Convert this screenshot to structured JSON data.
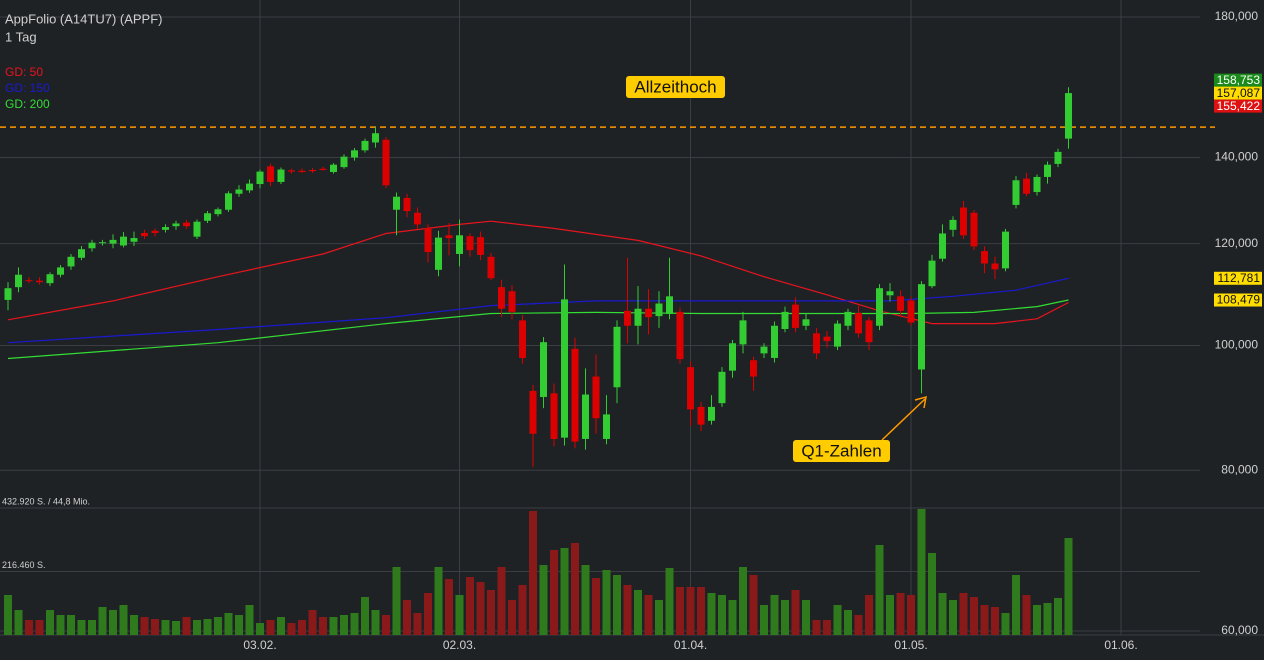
{
  "chart_data": {
    "type": "candlestick",
    "title": "AppFolio (A14TU7) (APPF)",
    "subtitle": "1 Tag",
    "log_scale": true,
    "grid": true,
    "up_color": "#33cc33",
    "down_color": "#dd0000",
    "ylim": [
      60000,
      180000
    ],
    "yticks": [
      {
        "value": 60000,
        "label": "60,000"
      },
      {
        "value": 80000,
        "label": "80,000"
      },
      {
        "value": 100000,
        "label": "100,000"
      },
      {
        "value": 120000,
        "label": "120,000"
      },
      {
        "value": 140000,
        "label": "140,000"
      },
      {
        "value": 180000,
        "label": "180,000"
      }
    ],
    "xlim": [
      -0.5,
      119.5
    ],
    "xticks": [
      {
        "value": 24,
        "label": "03.02."
      },
      {
        "value": 43,
        "label": "02.03."
      },
      {
        "value": 65,
        "label": "01.04."
      },
      {
        "value": 86,
        "label": "01.05."
      },
      {
        "value": 106,
        "label": "01.06."
      }
    ],
    "open": [
      108500,
      111000,
      112400,
      112300,
      111800,
      113500,
      115200,
      117000,
      119000,
      120100,
      120000,
      119600,
      120400,
      122300,
      122800,
      123000,
      123800,
      124600,
      121500,
      125000,
      126500,
      127500,
      131200,
      132000,
      133500,
      137800,
      134000,
      136800,
      136700,
      136900,
      137200,
      136400,
      137600,
      140000,
      141800,
      143800,
      144500,
      127500,
      130200,
      126800,
      123400,
      114500,
      121800,
      117800,
      121600,
      121400,
      117200,
      111000,
      110200,
      104600,
      92200,
      91200,
      91800,
      84800,
      99400,
      84600,
      94600,
      84600,
      92800,
      106400,
      103600,
      106800,
      105400,
      105800,
      106200,
      96200,
      89600,
      87400,
      90200,
      95600,
      100200,
      97400,
      98600,
      97800,
      103000,
      107600,
      103600,
      102200,
      101600,
      99800,
      103600,
      106000,
      104600,
      103600,
      109400,
      109200,
      108400,
      95800,
      111200,
      116800,
      123000,
      128000,
      126800,
      118400,
      115800,
      114800,
      128600,
      134800,
      131600,
      135200,
      138400,
      144800
    ],
    "high": [
      112000,
      115000,
      113000,
      113000,
      114000,
      115500,
      117800,
      119500,
      120800,
      120800,
      122000,
      122500,
      122600,
      123000,
      123300,
      124200,
      125000,
      125200,
      125300,
      127200,
      128000,
      131800,
      133200,
      134600,
      137000,
      138500,
      137500,
      137200,
      137300,
      137400,
      137700,
      138600,
      140800,
      142400,
      144800,
      147800,
      145200,
      131500,
      131200,
      128000,
      124200,
      122800,
      124500,
      125300,
      122200,
      122600,
      118000,
      112500,
      111400,
      105600,
      93200,
      101500,
      93400,
      115600,
      101400,
      96000,
      98400,
      91500,
      104600,
      117000,
      111200,
      110600,
      110200,
      117000,
      107000,
      97200,
      90400,
      91500,
      96200,
      101000,
      106200,
      98000,
      100400,
      104400,
      107200,
      109000,
      106000,
      103200,
      102600,
      104600,
      106800,
      107400,
      105200,
      111600,
      111800,
      110400,
      109200,
      112200,
      117600,
      124200,
      126000,
      129500,
      127400,
      119400,
      117200,
      123200,
      135400,
      136200,
      135800,
      139000,
      142200,
      158753
    ],
    "low": [
      106500,
      110000,
      111800,
      111500,
      111200,
      113000,
      114500,
      116500,
      118300,
      119600,
      119000,
      119200,
      119500,
      121000,
      121500,
      122400,
      123000,
      123200,
      121000,
      124500,
      126000,
      127000,
      130500,
      131400,
      132500,
      133000,
      133500,
      136000,
      136200,
      136200,
      136700,
      136000,
      137200,
      139200,
      141200,
      142500,
      132500,
      121800,
      125800,
      123200,
      116000,
      113200,
      117500,
      115200,
      117200,
      116500,
      112400,
      105200,
      104800,
      96800,
      80500,
      89400,
      83500,
      83600,
      83200,
      83000,
      85400,
      83800,
      90200,
      100400,
      100200,
      102000,
      103200,
      104800,
      96800,
      86600,
      85800,
      86800,
      89600,
      94400,
      98600,
      92200,
      97800,
      97000,
      102400,
      102400,
      102800,
      97600,
      99600,
      99200,
      102800,
      101400,
      99200,
      102800,
      108200,
      105200,
      103600,
      91800,
      110800,
      116200,
      121500,
      121000,
      118600,
      113800,
      112600,
      114200,
      127800,
      130600,
      130800,
      133600,
      137600,
      142200
    ],
    "close": [
      110800,
      113500,
      112200,
      112000,
      113600,
      115000,
      117200,
      118800,
      120200,
      120300,
      120800,
      121500,
      121200,
      121600,
      122300,
      123600,
      124400,
      123800,
      124800,
      126700,
      127600,
      131300,
      132200,
      133600,
      136500,
      134000,
      137000,
      136500,
      136400,
      136600,
      136900,
      138200,
      140200,
      141800,
      144200,
      146200,
      133200,
      130500,
      127200,
      124200,
      118200,
      121300,
      121200,
      121800,
      118600,
      117600,
      112800,
      106800,
      106200,
      97800,
      85400,
      100600,
      84600,
      108600,
      84200,
      91600,
      87800,
      88400,
      103400,
      103600,
      106800,
      105200,
      107800,
      109200,
      97600,
      89200,
      86800,
      89600,
      95400,
      100400,
      104600,
      94600,
      99800,
      103600,
      106200,
      103200,
      104800,
      98600,
      100800,
      104000,
      106200,
      102200,
      100600,
      110800,
      110200,
      106400,
      104200,
      111600,
      116400,
      122200,
      125200,
      121800,
      119400,
      115800,
      114600,
      122600,
      134400,
      131200,
      135200,
      138200,
      141400,
      157087
    ],
    "moving_averages": [
      {
        "name": "GD: 50",
        "color": "#e8141e",
        "x": [
          0,
          10,
          20,
          30,
          36,
          43,
          46,
          52,
          60,
          66,
          72,
          78,
          83,
          88,
          94,
          98,
          101
        ],
        "values": [
          104700,
          108300,
          113100,
          117800,
          122200,
          124200,
          124900,
          123300,
          120700,
          117400,
          113100,
          109500,
          106400,
          104000,
          104000,
          104900,
          108000
        ]
      },
      {
        "name": "GD: 150",
        "color": "#1a1ad0",
        "x": [
          0,
          20,
          36,
          46,
          56,
          66,
          76,
          84,
          90,
          96,
          101
        ],
        "values": [
          100500,
          102900,
          105100,
          107400,
          108300,
          108300,
          108300,
          108300,
          109200,
          110400,
          112781
        ]
      },
      {
        "name": "GD: 200",
        "color": "#33dd33",
        "x": [
          0,
          20,
          36,
          46,
          56,
          66,
          76,
          86,
          92,
          98,
          101
        ],
        "values": [
          97700,
          100500,
          104000,
          105900,
          106100,
          105900,
          105900,
          105900,
          106100,
          107200,
          108479
        ]
      }
    ],
    "volume": {
      "up_color": "#2f7a1c",
      "down_color": "#8a1a1a",
      "ylim": [
        0,
        432920
      ],
      "yticks": [
        {
          "value": 216460,
          "label": "216.460 S."
        },
        {
          "value": 432920,
          "label": "432.920 S. / 44,8 Mio."
        }
      ],
      "values": [
        136360,
        85230,
        51140,
        51140,
        85230,
        68180,
        68180,
        51140,
        51140,
        95450,
        85230,
        102270,
        68180,
        61360,
        54540,
        51140,
        47730,
        61360,
        51140,
        54540,
        61360,
        75000,
        68180,
        102270,
        40910,
        51140,
        61360,
        40910,
        51140,
        85230,
        61360,
        61360,
        68180,
        75000,
        129540,
        85230,
        68180,
        231810,
        119320,
        75000,
        143180,
        231810,
        190900,
        136360,
        197720,
        180680,
        153410,
        231810,
        119320,
        170450,
        422720,
        238630,
        289770,
        296580,
        313630,
        238630,
        194310,
        221590,
        204540,
        170450,
        153410,
        136360,
        119320,
        228400,
        163630,
        163630,
        163630,
        143180,
        136360,
        119320,
        231810,
        204540,
        102270,
        136360,
        119320,
        153410,
        119320,
        51140,
        51140,
        102270,
        85230,
        68180,
        136360,
        306810,
        136360,
        143180,
        136360,
        429530,
        279540,
        143180,
        119320,
        143180,
        129540,
        102270,
        95450,
        75000,
        204540,
        136360,
        102270,
        109090,
        126130,
        330670
      ]
    },
    "reference_line": {
      "value": 147800,
      "color": "#ff9900"
    },
    "price_tags": [
      {
        "value": 158753,
        "label": "158,753",
        "color": "#1a8a1a",
        "text_color": "#ffffff"
      },
      {
        "value": 157087,
        "label": "157,087",
        "color": "#ffdd00",
        "text_color": "#111111"
      },
      {
        "value": 155422,
        "label": "155,422",
        "color": "#dd1111",
        "text_color": "#ffffff"
      },
      {
        "value": 112781,
        "label": "112,781",
        "color": "#ffdd00",
        "text_color": "#111111"
      },
      {
        "value": 108479,
        "label": "108,479",
        "color": "#ffdd00",
        "text_color": "#111111"
      }
    ],
    "annotations": [
      {
        "text": "Allzeithoch"
      },
      {
        "text": "Q1-Zahlen"
      }
    ]
  }
}
